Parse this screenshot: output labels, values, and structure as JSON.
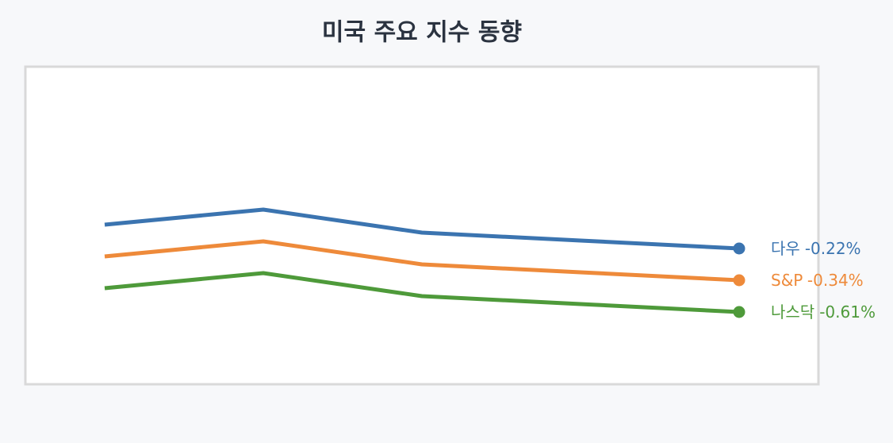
{
  "chart_data": {
    "type": "line",
    "title": "미국 주요 지수 동향",
    "categories": [
      null,
      null,
      null,
      null,
      null
    ],
    "ylim": [
      0,
      400
    ],
    "series": [
      {
        "name": "다우",
        "change": "-0.22%",
        "color": "#3b74b0",
        "values": [
          201,
          220,
          191,
          181,
          171
        ]
      },
      {
        "name": "S&P",
        "change": "-0.34%",
        "color": "#ee8a3a",
        "values": [
          161,
          180,
          151,
          141,
          131
        ]
      },
      {
        "name": "나스닥",
        "change": "-0.61%",
        "color": "#4e9a3a",
        "values": [
          121,
          140,
          111,
          101,
          91
        ]
      }
    ]
  }
}
